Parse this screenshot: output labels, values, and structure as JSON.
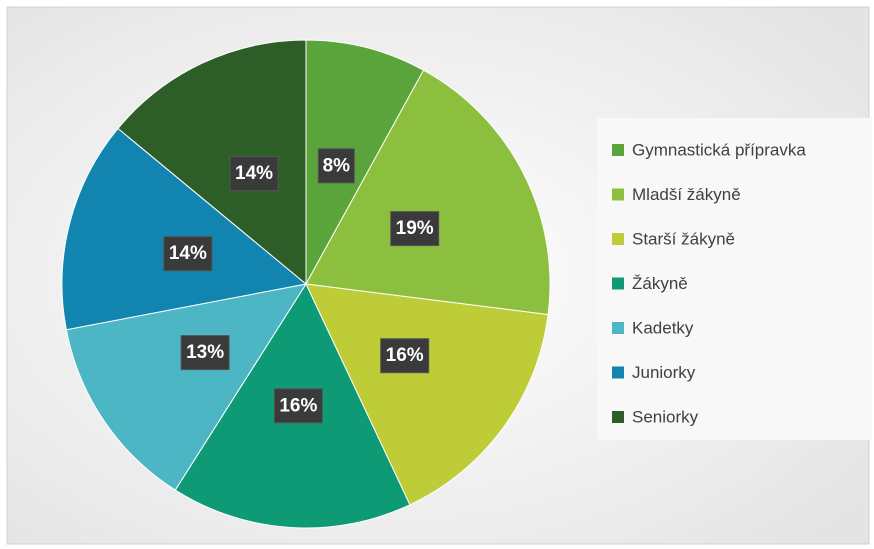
{
  "chart_data": {
    "type": "pie",
    "categories": [
      "Gymnastická přípravka",
      "Mladší žákyně",
      "Starší žákyně",
      "Žákyně",
      "Kadetky",
      "Juniorky",
      "Seniorky"
    ],
    "values": [
      8,
      19,
      16,
      16,
      13,
      14,
      14
    ],
    "value_labels": [
      "8%",
      "19%",
      "16%",
      "16%",
      "13%",
      "14%",
      "14%"
    ],
    "colors": [
      "#5ba33b",
      "#8dbf3e",
      "#bdcc37",
      "#0f9a76",
      "#4cb6c5",
      "#1184b0",
      "#2e5e27"
    ],
    "legend": "right"
  }
}
